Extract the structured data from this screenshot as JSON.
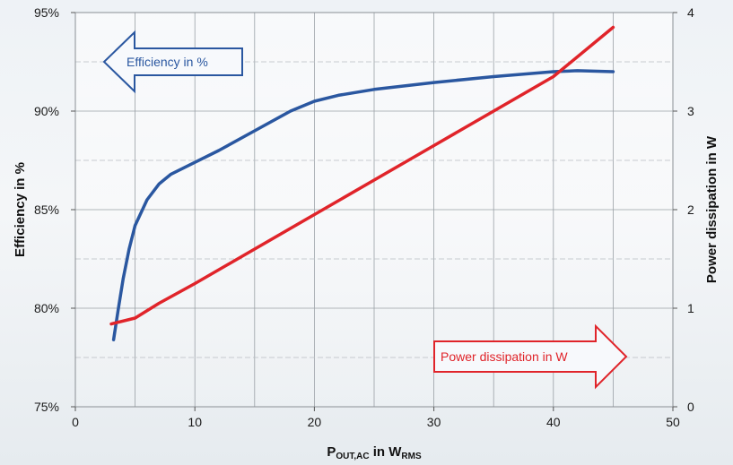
{
  "chart_data": {
    "type": "line",
    "xlabel": {
      "main": "P",
      "main_sub": "OUT,AC",
      "unit_pre": " in W",
      "unit_sub": "RMS"
    },
    "ylabel_left": "Efficiency in %",
    "ylabel_right": "Power dissipation in W",
    "xlim": [
      0,
      50
    ],
    "ylim_left": [
      75,
      95
    ],
    "ylim_right": [
      0,
      4
    ],
    "x_ticks": [
      0,
      10,
      20,
      30,
      40,
      50
    ],
    "x_tick_labels": [
      "0",
      "10",
      "20",
      "30",
      "40",
      "50"
    ],
    "y_left_ticks": [
      75,
      80,
      85,
      90,
      95
    ],
    "y_left_tick_labels": [
      "75%",
      "80%",
      "85%",
      "90%",
      "95%"
    ],
    "y_right_ticks": [
      0,
      1,
      2,
      3,
      4
    ],
    "y_right_tick_labels": [
      "0",
      "1",
      "2",
      "3",
      "4"
    ],
    "grid": true,
    "series": [
      {
        "name": "Efficiency in %",
        "axis": "left",
        "color": "#2a57a0",
        "x": [
          3.2,
          3.6,
          4.0,
          4.5,
          5.0,
          6.0,
          7.0,
          8.0,
          10.0,
          12.0,
          15.0,
          18.0,
          20.0,
          22.0,
          25.0,
          30.0,
          35.0,
          40.0,
          42.0,
          45.0
        ],
        "y": [
          78.4,
          80.0,
          81.5,
          83.0,
          84.2,
          85.5,
          86.3,
          86.8,
          87.4,
          88.0,
          89.0,
          90.0,
          90.5,
          90.8,
          91.1,
          91.45,
          91.75,
          92.0,
          92.05,
          92.0
        ]
      },
      {
        "name": "Power dissipation in W",
        "axis": "right",
        "color": "#e0242a",
        "x": [
          3.0,
          5.0,
          7.0,
          10.0,
          15.0,
          20.0,
          25.0,
          30.0,
          35.0,
          40.0,
          45.0
        ],
        "y": [
          0.84,
          0.9,
          1.05,
          1.25,
          1.6,
          1.95,
          2.3,
          2.65,
          3.0,
          3.35,
          3.85
        ]
      }
    ]
  },
  "callouts": {
    "efficiency": {
      "text": "Efficiency in %",
      "direction": "left",
      "color": "#2a57a0"
    },
    "power": {
      "text": "Power dissipation in W",
      "direction": "right",
      "color": "#e0242a"
    }
  }
}
